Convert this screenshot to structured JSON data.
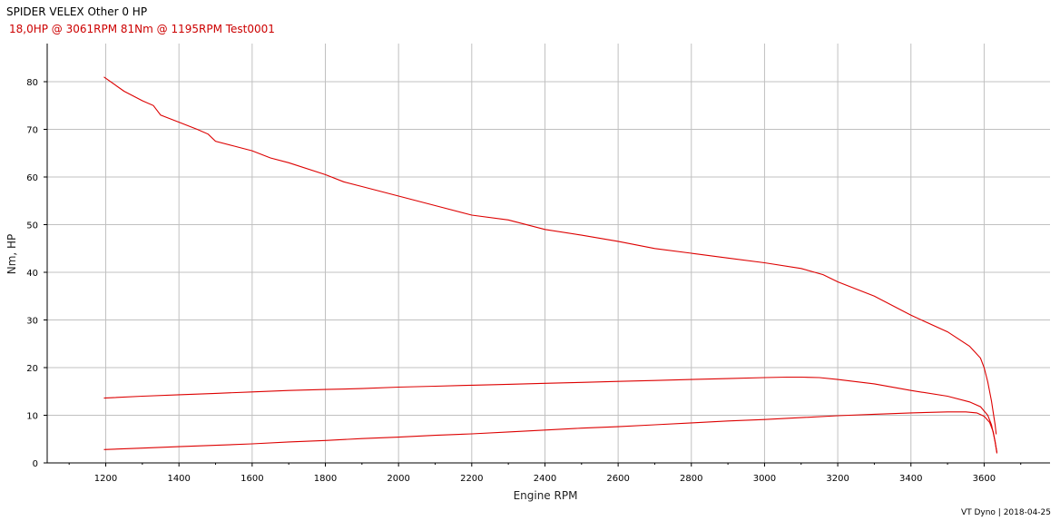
{
  "header": {
    "title": "SPIDER VELEX Other 0 HP",
    "subtitle": "18,0HP @  3061RPM    81Nm @ 1195RPM   Test0001"
  },
  "footer": {
    "text": "VT Dyno | 2018-04-25"
  },
  "colors": {
    "series": "#dd0000",
    "grid": "#c0c0c0",
    "axis": "#000000"
  },
  "chart_data": {
    "type": "line",
    "xlabel": "Engine RPM",
    "ylabel": "Nm, HP",
    "xlim": [
      1040,
      3780
    ],
    "ylim": [
      0,
      88
    ],
    "xticks": [
      1200,
      1400,
      1600,
      1800,
      2000,
      2200,
      2400,
      2600,
      2800,
      3000,
      3200,
      3400,
      3600
    ],
    "yticks": [
      0,
      10,
      20,
      30,
      40,
      50,
      60,
      70,
      80
    ],
    "grid": true,
    "series": [
      {
        "x": [
          1195,
          1250,
          1300,
          1330,
          1350,
          1400,
          1450,
          1480,
          1500,
          1550,
          1600,
          1650,
          1700,
          1800,
          1850,
          1900,
          2000,
          2100,
          2200,
          2300,
          2400,
          2500,
          2600,
          2700,
          2800,
          2900,
          3000,
          3100,
          3160,
          3200,
          3300,
          3400,
          3500,
          3560,
          3590,
          3600,
          3610,
          3620,
          3630,
          3633
        ],
        "values": [
          81,
          78,
          76,
          75,
          73,
          71.5,
          70,
          69,
          67.5,
          66.5,
          65.5,
          64,
          63,
          60.5,
          59,
          58,
          56,
          54,
          52,
          51,
          49,
          47.8,
          46.5,
          45,
          44,
          43,
          42,
          40.8,
          39.5,
          38,
          35,
          31,
          27.5,
          24.5,
          22,
          20,
          17,
          13,
          8,
          6
        ]
      },
      {
        "x": [
          1195,
          1300,
          1400,
          1500,
          1600,
          1700,
          1800,
          1900,
          2000,
          2100,
          2200,
          2300,
          2400,
          2500,
          2600,
          2700,
          2800,
          2900,
          3000,
          3061,
          3100,
          3150,
          3200,
          3300,
          3400,
          3500,
          3560,
          3590,
          3610,
          3620,
          3630,
          3635
        ],
        "values": [
          13.6,
          14,
          14.3,
          14.6,
          14.9,
          15.2,
          15.4,
          15.6,
          15.9,
          16.1,
          16.3,
          16.5,
          16.7,
          16.9,
          17.1,
          17.3,
          17.5,
          17.7,
          17.9,
          18,
          18,
          17.9,
          17.5,
          16.6,
          15.2,
          14,
          12.8,
          11.8,
          10,
          8,
          4.5,
          2
        ]
      },
      {
        "x": [
          1195,
          1300,
          1400,
          1500,
          1600,
          1700,
          1800,
          1900,
          2000,
          2100,
          2200,
          2300,
          2400,
          2500,
          2600,
          2700,
          2800,
          2900,
          3000,
          3100,
          3200,
          3300,
          3400,
          3500,
          3550,
          3580,
          3600,
          3615,
          3625,
          3635
        ],
        "values": [
          2.8,
          3.1,
          3.4,
          3.7,
          4.0,
          4.4,
          4.7,
          5.1,
          5.4,
          5.8,
          6.1,
          6.5,
          6.9,
          7.3,
          7.6,
          8.0,
          8.4,
          8.8,
          9.1,
          9.5,
          9.9,
          10.2,
          10.5,
          10.7,
          10.7,
          10.5,
          9.8,
          8.5,
          6.5,
          2.2
        ]
      }
    ]
  }
}
